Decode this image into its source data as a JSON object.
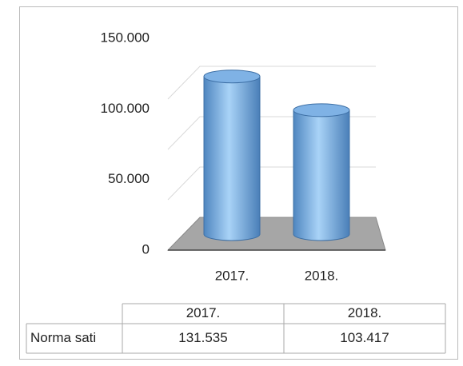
{
  "chart_data": {
    "type": "bar",
    "categories": [
      "2017.",
      "2018."
    ],
    "series": [
      {
        "name": "Norma sati",
        "color": "#5b9bd5",
        "values": [
          131535,
          103417
        ],
        "value_labels": [
          "131.535",
          "103.417"
        ]
      }
    ],
    "ylim": [
      0,
      150000
    ],
    "yticks": [
      {
        "value": 0,
        "label": "0"
      },
      {
        "value": 50000,
        "label": "50.000"
      },
      {
        "value": 100000,
        "label": "100.000"
      },
      {
        "value": 150000,
        "label": "150.000"
      }
    ],
    "grid": true
  }
}
